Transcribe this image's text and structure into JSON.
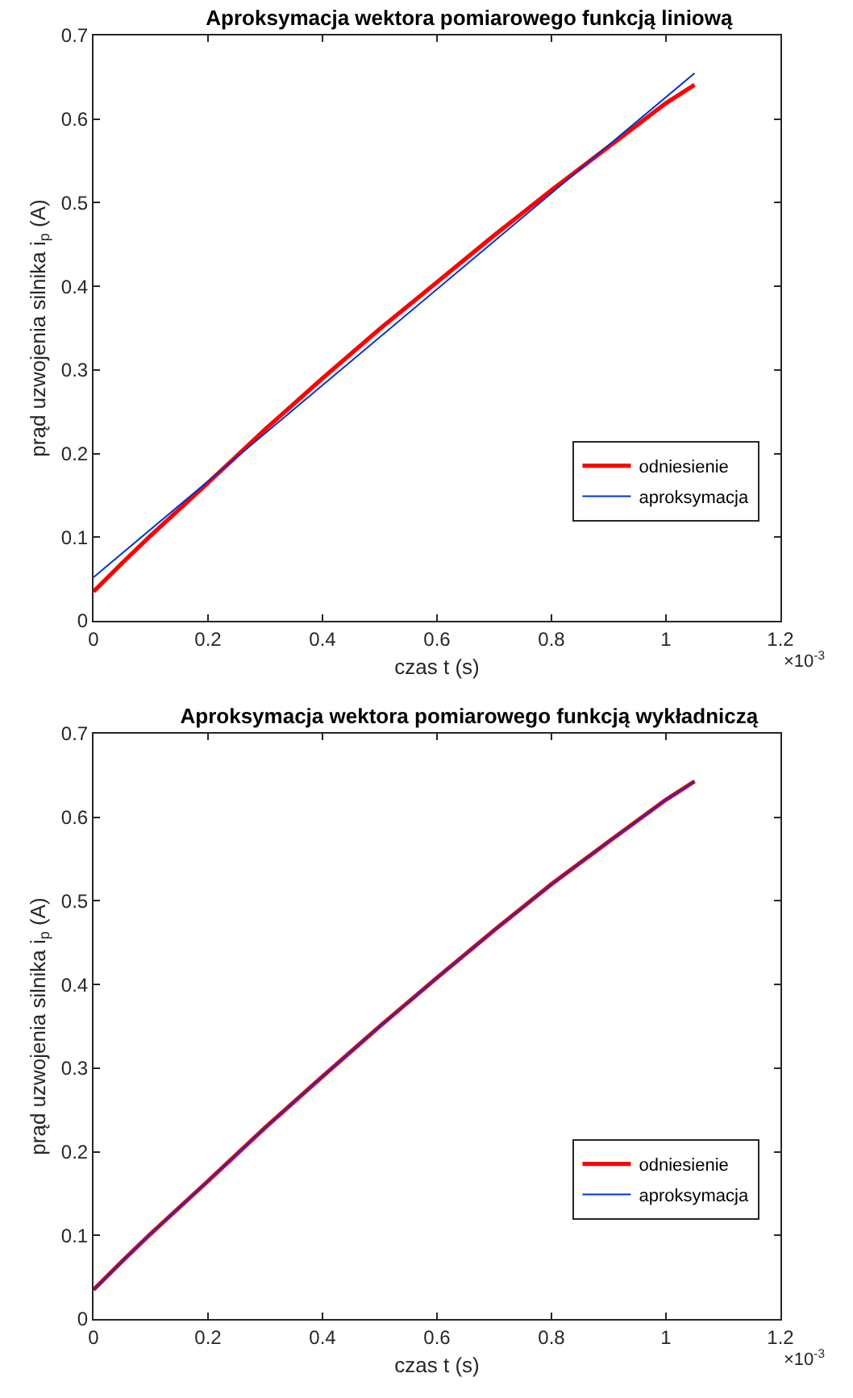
{
  "chart_data": [
    {
      "type": "line",
      "title": "Aproksymacja wektora pomiarowego funkcją liniową",
      "xlabel": "czas t (s)",
      "ylabel": "prąd uzwojenia silnika i$_{p}$ (A)",
      "annotations": [
        "×10$^{-3}$"
      ],
      "series": [
        {
          "name": "odniesienie",
          "color": "#ff0000",
          "x": [
            0,
            0.05,
            0.1,
            0.2,
            0.3,
            0.4,
            0.5,
            0.6,
            0.7,
            0.8,
            0.9,
            1.0,
            1.05
          ],
          "values": [
            0.035,
            0.069,
            0.102,
            0.165,
            0.229,
            0.29,
            0.349,
            0.405,
            0.461,
            0.515,
            0.567,
            0.619,
            0.641
          ]
        },
        {
          "name": "aproksymacja",
          "color": "#0033cc",
          "x": [
            0,
            1.05
          ],
          "values": [
            0.052,
            0.655
          ]
        }
      ],
      "xlim": [
        0,
        1.2
      ],
      "xticks": [
        0,
        0.2,
        0.4,
        0.6,
        0.8,
        1,
        1.2
      ],
      "ylim": [
        0,
        0.7
      ],
      "yticks": [
        0,
        0.1,
        0.2,
        0.3,
        0.4,
        0.5,
        0.6,
        0.7
      ],
      "grid": false,
      "legend": "bottom right",
      "line_style": "solid",
      "marker": "none"
    },
    {
      "type": "line",
      "title": "Aproksymacja wektora pomiarowego funkcją wykładniczą",
      "xlabel": "czas t (s)",
      "ylabel": "prąd uzwojenia silnika i$_{p}$ (A)",
      "annotations": [
        "×10$^{-3}$"
      ],
      "series": [
        {
          "name": "odniesienie",
          "color": "#ff0000",
          "x": [
            0,
            0.05,
            0.1,
            0.2,
            0.3,
            0.4,
            0.5,
            0.6,
            0.7,
            0.8,
            0.9,
            1.0,
            1.05
          ],
          "values": [
            0.035,
            0.069,
            0.102,
            0.165,
            0.229,
            0.29,
            0.35,
            0.408,
            0.465,
            0.52,
            0.571,
            0.621,
            0.643
          ]
        },
        {
          "name": "aproksymacja",
          "color": "#0033cc",
          "x": [
            0,
            0.05,
            0.1,
            0.2,
            0.3,
            0.4,
            0.5,
            0.6,
            0.7,
            0.8,
            0.9,
            1.0,
            1.05
          ],
          "values": [
            0.035,
            0.069,
            0.102,
            0.165,
            0.229,
            0.29,
            0.35,
            0.408,
            0.465,
            0.52,
            0.571,
            0.621,
            0.643
          ]
        }
      ],
      "xlim": [
        0,
        1.2
      ],
      "xticks": [
        0,
        0.2,
        0.4,
        0.6,
        0.8,
        1,
        1.2
      ],
      "ylim": [
        0,
        0.7
      ],
      "yticks": [
        0,
        0.1,
        0.2,
        0.3,
        0.4,
        0.5,
        0.6,
        0.7
      ],
      "grid": false,
      "legend": "bottom right",
      "line_style": "solid",
      "marker": "none"
    }
  ]
}
